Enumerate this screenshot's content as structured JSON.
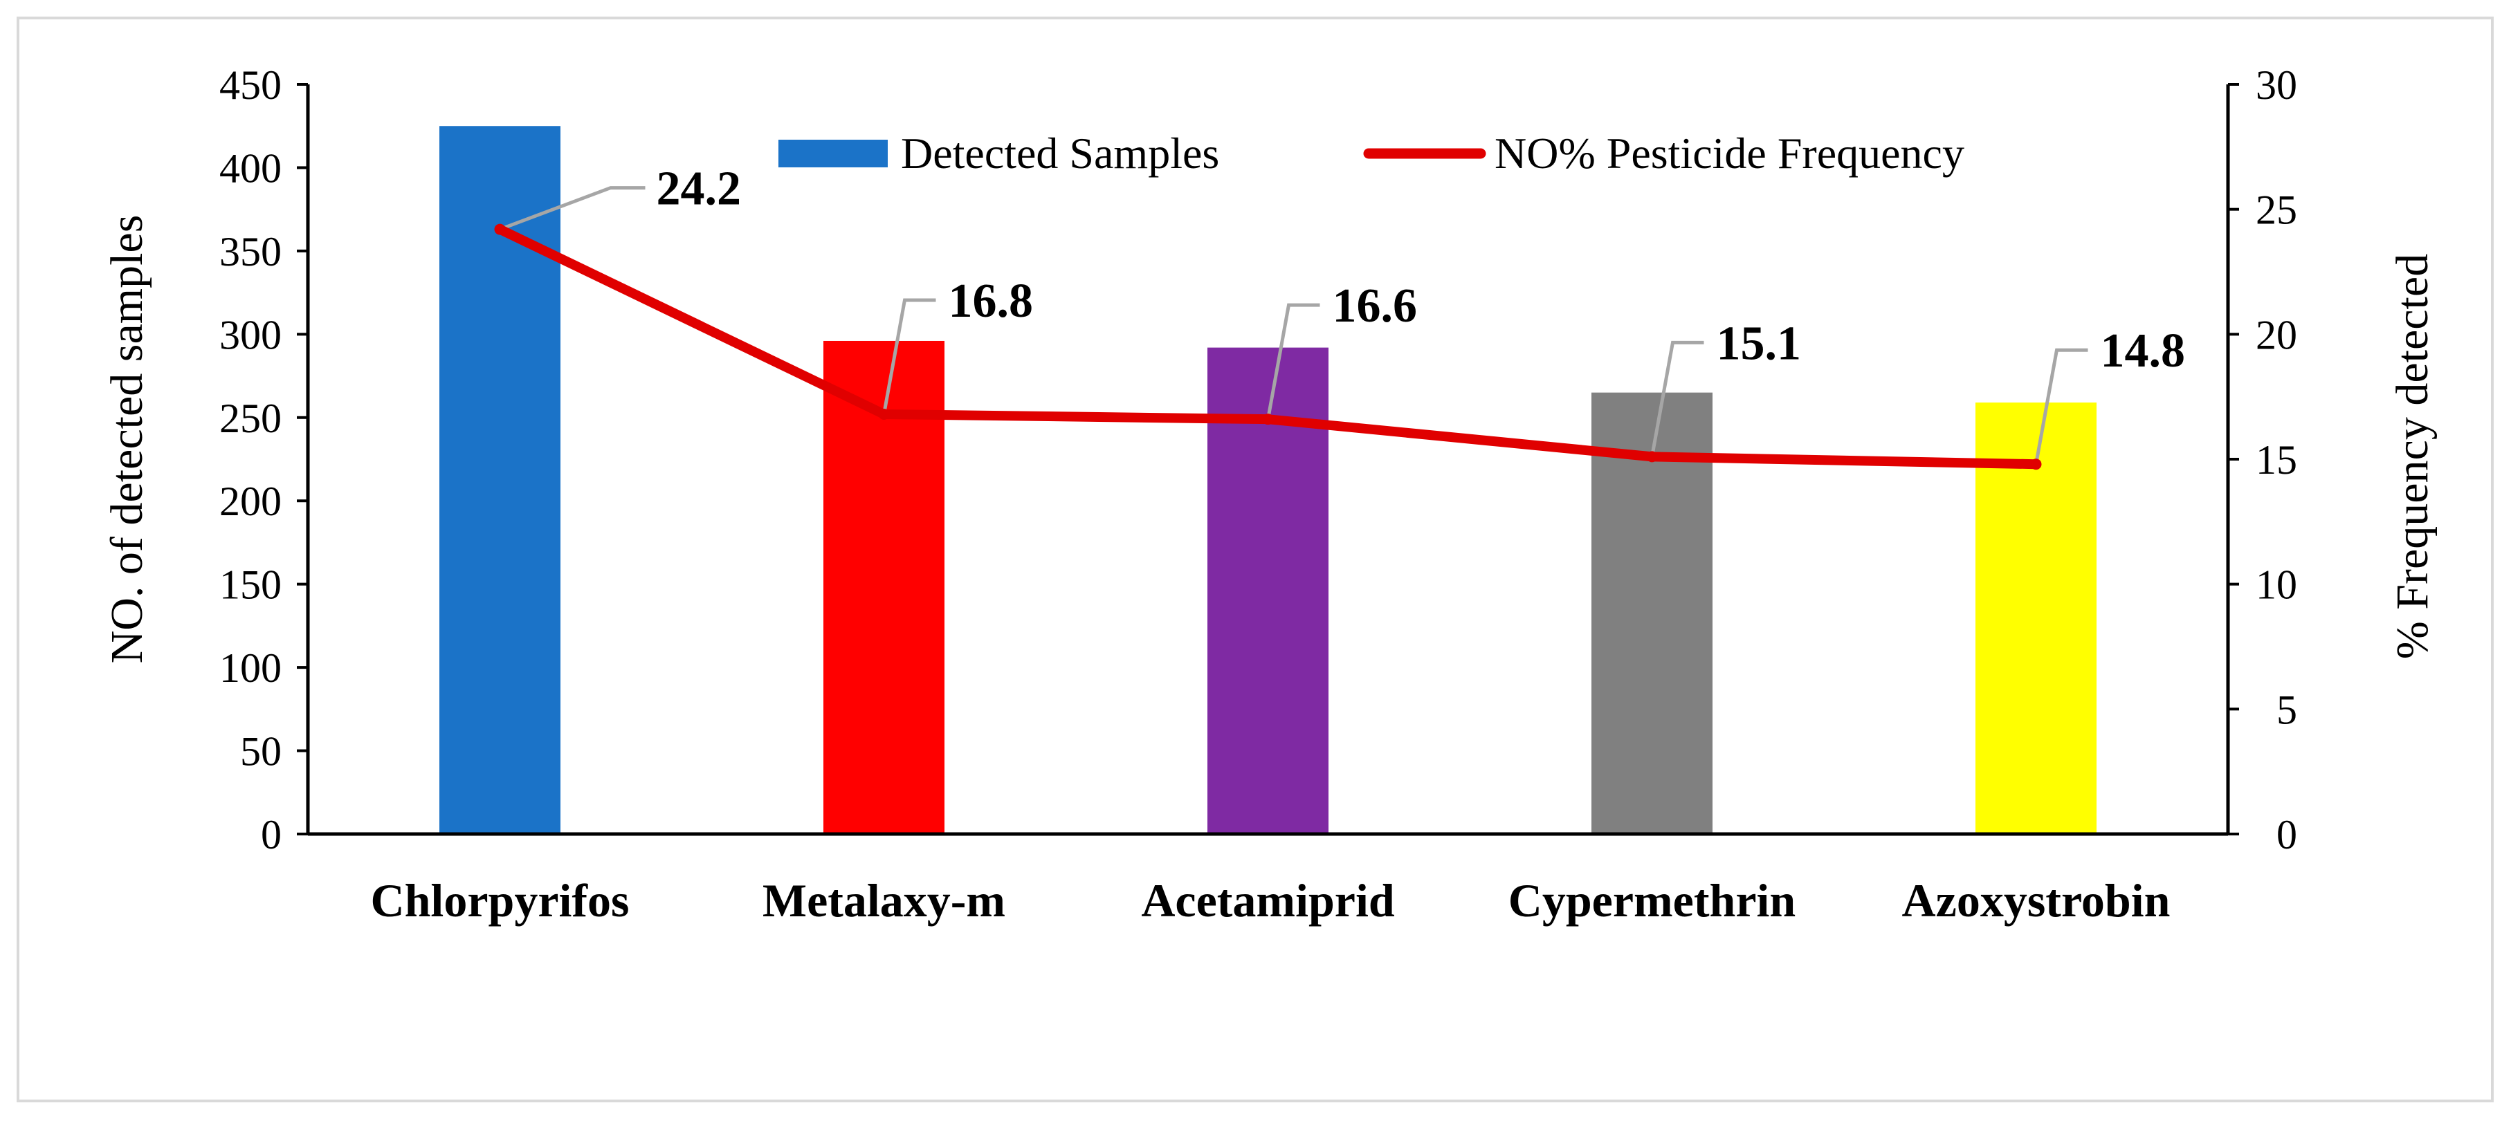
{
  "chart_data": {
    "type": "bar",
    "title": "",
    "categories": [
      "Chlorpyrifos",
      "Metalaxy-m",
      "Acetamiprid",
      "Cypermethrin",
      "Azoxystrobin"
    ],
    "series": [
      {
        "name": "Detected Samples",
        "kind": "bar",
        "axis": "left",
        "values": [
          425,
          296,
          292,
          265,
          259
        ],
        "colors": [
          "#1b73c8",
          "#ff0000",
          "#7f2aa3",
          "#808080",
          "#ffff00"
        ]
      },
      {
        "name": "NO% Pesticide Frequency",
        "kind": "line",
        "axis": "right",
        "values": [
          24.2,
          16.8,
          16.6,
          15.1,
          14.8
        ],
        "labels": [
          "24.2",
          "16.8",
          "16.6",
          "15.1",
          "14.8"
        ],
        "color": "#e00000"
      }
    ],
    "ylabel": "NO. of detected samples",
    "y2label": "% Frequency detected",
    "xlabel": "",
    "ylim": [
      0,
      450
    ],
    "y2lim": [
      0,
      30
    ],
    "yticks": [
      "0",
      "50",
      "100",
      "150",
      "200",
      "250",
      "300",
      "350",
      "400",
      "450"
    ],
    "y2ticks": [
      "0",
      "5",
      "10",
      "15",
      "20",
      "25",
      "30"
    ],
    "legend_position": "top-center",
    "grid": false
  },
  "colors": {
    "frame": "#d9d9d9",
    "axis": "#000000",
    "leader": "#a6a6a6"
  }
}
